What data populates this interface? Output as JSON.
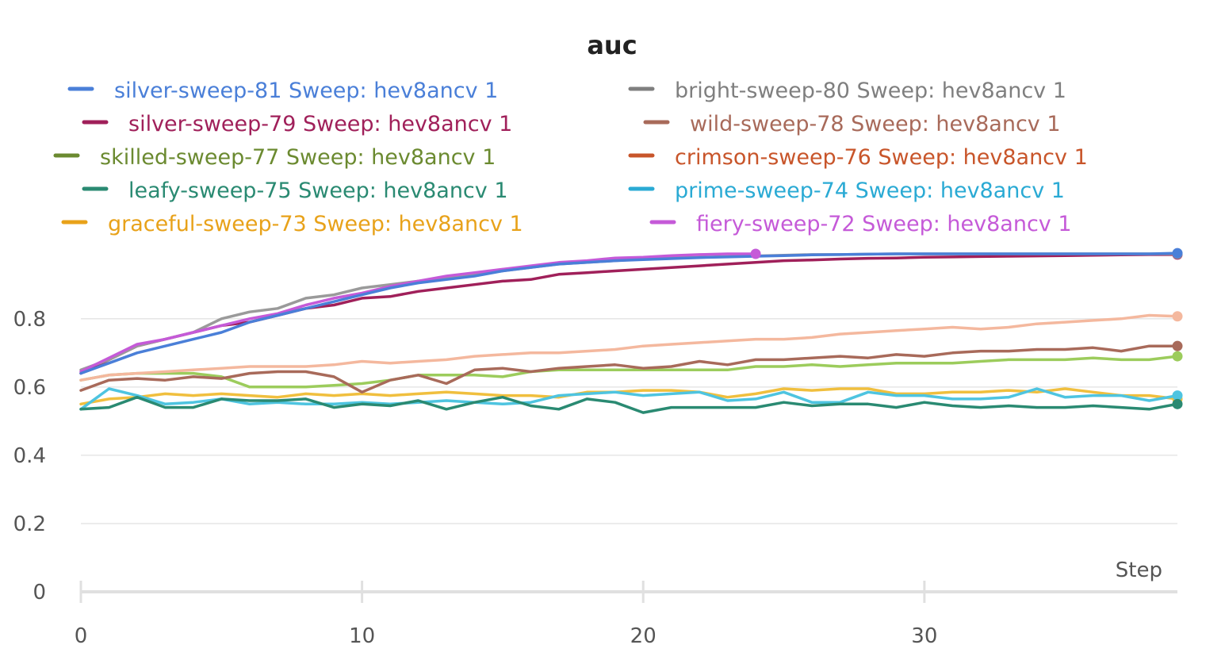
{
  "chart_data": {
    "type": "line",
    "title": "auc",
    "xlabel": "Step",
    "ylabel": "",
    "xlim": [
      0,
      39
    ],
    "ylim": [
      0,
      1.0
    ],
    "xticks": [
      0,
      10,
      20,
      30
    ],
    "yticks": [
      0,
      0.2,
      0.4,
      0.6,
      0.8
    ],
    "ytick_labels": [
      "0",
      "0.2",
      "0.4",
      "0.6",
      "0.8"
    ],
    "grid": true,
    "legend_position": "top",
    "series": [
      {
        "name": "silver-sweep-81 Sweep: hev8ancv 1",
        "color": "#4a7fd8",
        "legend_color": "#4a7fd8",
        "values": [
          0.64,
          0.67,
          0.7,
          0.72,
          0.74,
          0.76,
          0.79,
          0.81,
          0.83,
          0.85,
          0.87,
          0.89,
          0.905,
          0.915,
          0.925,
          0.94,
          0.95,
          0.96,
          0.965,
          0.97,
          0.973,
          0.976,
          0.979,
          0.981,
          0.983,
          0.985,
          0.987,
          0.988,
          0.989,
          0.99,
          0.99,
          0.99,
          0.99,
          0.99,
          0.99,
          0.99,
          0.99,
          0.99,
          0.99,
          0.992
        ]
      },
      {
        "name": "bright-sweep-80 Sweep: hev8ancv 1",
        "color": "#9a9a9a",
        "legend_color": "#7f7f7f",
        "values": [
          0.65,
          0.68,
          0.72,
          0.74,
          0.76,
          0.8,
          0.82,
          0.83,
          0.86,
          0.87,
          0.89,
          0.9,
          0.91,
          0.92,
          0.93,
          0.94,
          0.95,
          0.96,
          0.965,
          0.97,
          0.975,
          0.978,
          0.98,
          0.982,
          0.984,
          0.986,
          0.988,
          0.988,
          0.989,
          0.99,
          0.99,
          0.99,
          0.99,
          0.99,
          0.99,
          0.99,
          0.99,
          0.99,
          0.99,
          0.99
        ]
      },
      {
        "name": "silver-sweep-79 Sweep: hev8ancv 1",
        "color": "#a0205a",
        "legend_color": "#a0205a",
        "values": [
          0.64,
          0.68,
          0.72,
          0.74,
          0.76,
          0.78,
          0.79,
          0.81,
          0.83,
          0.84,
          0.86,
          0.865,
          0.88,
          0.89,
          0.9,
          0.91,
          0.915,
          0.93,
          0.935,
          0.94,
          0.945,
          0.95,
          0.955,
          0.96,
          0.965,
          0.97,
          0.972,
          0.975,
          0.977,
          0.978,
          0.98,
          0.981,
          0.982,
          0.983,
          0.984,
          0.985,
          0.986,
          0.987,
          0.988,
          0.988
        ]
      },
      {
        "name": "wild-sweep-78 Sweep: hev8ancv 1",
        "color": "#a86a5a",
        "legend_color": "#a86a5a",
        "values": [
          0.59,
          0.62,
          0.625,
          0.62,
          0.63,
          0.625,
          0.64,
          0.645,
          0.645,
          0.63,
          0.585,
          0.62,
          0.635,
          0.61,
          0.65,
          0.655,
          0.645,
          0.655,
          0.66,
          0.665,
          0.655,
          0.66,
          0.675,
          0.665,
          0.68,
          0.68,
          0.685,
          0.69,
          0.685,
          0.695,
          0.69,
          0.7,
          0.705,
          0.705,
          0.71,
          0.71,
          0.715,
          0.705,
          0.72,
          0.72
        ]
      },
      {
        "name": "skilled-sweep-77 Sweep: hev8ancv 1",
        "color": "#9ccc5c",
        "legend_color": "#6b8a30",
        "values": [
          0.62,
          0.635,
          0.64,
          0.64,
          0.64,
          0.63,
          0.6,
          0.6,
          0.6,
          0.605,
          0.61,
          0.62,
          0.635,
          0.635,
          0.635,
          0.63,
          0.645,
          0.65,
          0.65,
          0.65,
          0.65,
          0.65,
          0.65,
          0.65,
          0.66,
          0.66,
          0.665,
          0.66,
          0.665,
          0.67,
          0.67,
          0.67,
          0.675,
          0.68,
          0.68,
          0.68,
          0.685,
          0.68,
          0.68,
          0.69
        ]
      },
      {
        "name": "crimson-sweep-76 Sweep: hev8ancv 1",
        "color": "#f4b89e",
        "legend_color": "#c8552a",
        "values": [
          0.62,
          0.635,
          0.64,
          0.645,
          0.65,
          0.655,
          0.66,
          0.66,
          0.66,
          0.665,
          0.675,
          0.67,
          0.675,
          0.68,
          0.69,
          0.695,
          0.7,
          0.7,
          0.705,
          0.71,
          0.72,
          0.725,
          0.73,
          0.735,
          0.74,
          0.74,
          0.745,
          0.755,
          0.76,
          0.765,
          0.77,
          0.775,
          0.77,
          0.775,
          0.785,
          0.79,
          0.795,
          0.8,
          0.81,
          0.807
        ]
      },
      {
        "name": "leafy-sweep-75 Sweep: hev8ancv 1",
        "color": "#2a8a72",
        "legend_color": "#2a8a72",
        "values": [
          0.535,
          0.54,
          0.57,
          0.54,
          0.54,
          0.565,
          0.56,
          0.56,
          0.565,
          0.54,
          0.55,
          0.545,
          0.56,
          0.535,
          0.555,
          0.57,
          0.545,
          0.535,
          0.565,
          0.555,
          0.525,
          0.54,
          0.54,
          0.54,
          0.54,
          0.555,
          0.545,
          0.55,
          0.55,
          0.54,
          0.555,
          0.545,
          0.54,
          0.545,
          0.54,
          0.54,
          0.545,
          0.54,
          0.535,
          0.55
        ]
      },
      {
        "name": "prime-sweep-74 Sweep: hev8ancv 1",
        "color": "#4ec4e0",
        "legend_color": "#2aaad4",
        "values": [
          0.535,
          0.595,
          0.575,
          0.55,
          0.555,
          0.565,
          0.55,
          0.555,
          0.55,
          0.55,
          0.555,
          0.55,
          0.555,
          0.56,
          0.555,
          0.55,
          0.555,
          0.575,
          0.58,
          0.585,
          0.575,
          0.58,
          0.585,
          0.56,
          0.565,
          0.585,
          0.555,
          0.555,
          0.585,
          0.575,
          0.575,
          0.565,
          0.565,
          0.57,
          0.595,
          0.57,
          0.575,
          0.575,
          0.56,
          0.575
        ]
      },
      {
        "name": "graceful-sweep-73 Sweep: hev8ancv 1",
        "color": "#f0bf3e",
        "legend_color": "#e8a21a",
        "values": [
          0.55,
          0.565,
          0.57,
          0.58,
          0.575,
          0.58,
          0.575,
          0.57,
          0.58,
          0.575,
          0.58,
          0.575,
          0.58,
          0.585,
          0.58,
          0.575,
          0.575,
          0.57,
          0.585,
          0.585,
          0.59,
          0.59,
          0.585,
          0.57,
          0.58,
          0.595,
          0.59,
          0.595,
          0.595,
          0.58,
          0.58,
          0.585,
          0.585,
          0.59,
          0.585,
          0.595,
          0.585,
          0.575,
          0.575,
          0.565
        ]
      },
      {
        "name": "fiery-sweep-72 Sweep: hev8ancv 1",
        "color": "#c55ad8",
        "legend_color": "#c55ad8",
        "values": [
          0.645,
          0.685,
          0.725,
          0.74,
          0.76,
          0.78,
          0.8,
          0.815,
          0.84,
          0.86,
          0.875,
          0.895,
          0.91,
          0.925,
          0.935,
          0.945,
          0.955,
          0.965,
          0.97,
          0.978,
          0.98,
          0.985,
          0.988,
          0.99,
          0.99
        ]
      }
    ]
  }
}
